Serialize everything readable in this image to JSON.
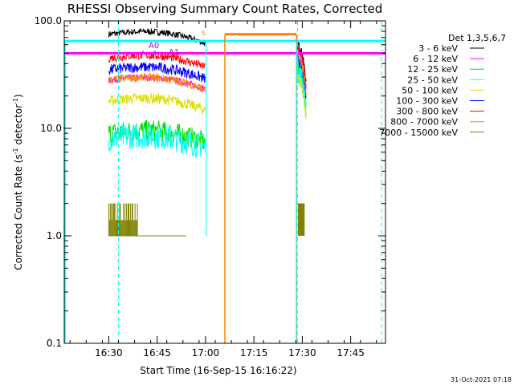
{
  "chart_data": {
    "type": "line",
    "title": "RHESSI Observing Summary Count Rates, Corrected",
    "xlabel": "Start Time (16-Sep-15 16:16:22)",
    "ylabel_main": "Corrected Count Rate (s",
    "ylabel_sup1": "-1",
    "ylabel_mid": " detector",
    "ylabel_sup2": "-1",
    "ylabel_end": ")",
    "y_scale": "log",
    "ylim": [
      0.1,
      100
    ],
    "xlim_minutes": [
      16.27,
      17.93
    ],
    "x_ticks": [
      {
        "label": "16:30",
        "t": 16.5
      },
      {
        "label": "16:45",
        "t": 16.75
      },
      {
        "label": "17:00",
        "t": 17.0
      },
      {
        "label": "17:15",
        "t": 17.25
      },
      {
        "label": "17:30",
        "t": 17.5
      },
      {
        "label": "17:45",
        "t": 17.75
      }
    ],
    "y_ticks": [
      {
        "label": "100.0",
        "v": 100
      },
      {
        "label": "10.0",
        "v": 10
      },
      {
        "label": "1.0",
        "v": 1
      },
      {
        "label": "0.1",
        "v": 0.1
      }
    ],
    "legend_title": "Det 1,3,5,6,7",
    "legend_placement": "right",
    "series": [
      {
        "name": "3 - 6 keV",
        "color": "#000000",
        "level1": 75,
        "level2": 62,
        "noise": 0.03
      },
      {
        "name": "6 - 12 keV",
        "color": "#ff00ff",
        "level1": 28,
        "level2": 55,
        "noise": 0.03
      },
      {
        "name": "12 - 25 keV",
        "color": "#00dd00",
        "level1": 9,
        "level2": 38,
        "noise": 0.1
      },
      {
        "name": "25 - 50 keV",
        "color": "#00ffff",
        "level1": 8,
        "level2": 35,
        "noise": 0.12
      },
      {
        "name": "50 - 100 keV",
        "color": "#dddd00",
        "level1": 18,
        "level2": 30,
        "noise": 0.05
      },
      {
        "name": "100 - 300 keV",
        "color": "#0000ff",
        "level1": 35,
        "level2": 45,
        "noise": 0.05
      },
      {
        "name": "300 - 800 keV",
        "color": "#ff0000",
        "level1": 45,
        "level2": 55,
        "noise": 0.04
      },
      {
        "name": "800 - 7000 keV",
        "color": "#ff8000",
        "level1": 28,
        "level2": 48,
        "noise": 0.04
      },
      {
        "name": "7000 - 15000 keV",
        "color": "#808000",
        "level1": 1.0,
        "level2": 1.0,
        "noise": 0
      }
    ],
    "attenuator_labels": [
      {
        "label": "A0",
        "color": "#c000c0"
      },
      {
        "label": "A1",
        "color": "#c000c0"
      }
    ],
    "flags": [
      {
        "name": "attenuator",
        "color": "#ff00ff",
        "t_start": 16.27,
        "t_end": 17.93,
        "value": 50
      },
      {
        "name": "night",
        "color": "#00ffff",
        "t_start": 16.27,
        "t_end": 17.93,
        "value": 65
      },
      {
        "name": "saa",
        "color": "#ff8000",
        "t_start": 17.1,
        "t_end": 17.47,
        "value": 75
      }
    ],
    "timestamp": "31-Oct-2021 07:18",
    "saa_marker": "S"
  }
}
